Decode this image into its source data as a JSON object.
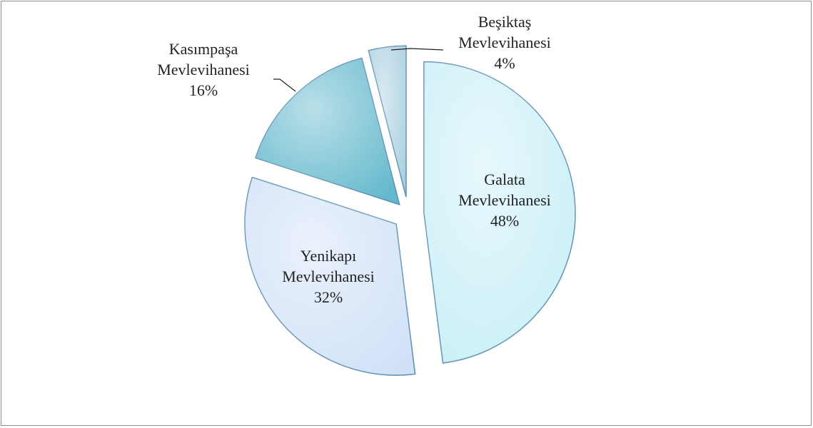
{
  "chart_data": {
    "type": "pie",
    "categories": [
      "Galata Mevlevihanesi",
      "Yenikapı Mevlevihanesi",
      "Kasımpaşa Mevlevihanesi",
      "Beşiktaş Mevlevihanesi"
    ],
    "values": [
      48,
      32,
      16,
      4
    ],
    "value_labels": [
      "48%",
      "32%",
      "16%",
      "4%"
    ],
    "colors": [
      "#c8eff7",
      "#d0e1f7",
      "#62b8cc",
      "#a9cfe0"
    ]
  }
}
